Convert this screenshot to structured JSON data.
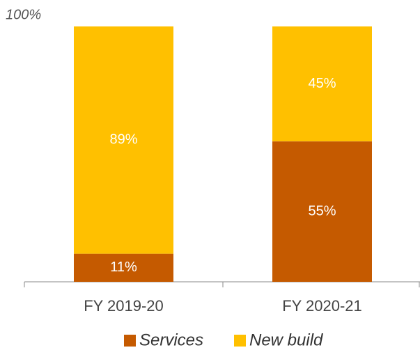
{
  "chart_data": {
    "type": "stacked_bar",
    "categories": [
      "FY 2019-20",
      "FY 2020-21"
    ],
    "series": [
      {
        "name": "Services",
        "color": "#c55a00",
        "values": [
          11,
          55
        ],
        "value_labels": [
          "11%",
          "55%"
        ]
      },
      {
        "name": "New build",
        "color": "#ffc000",
        "values": [
          89,
          45
        ],
        "value_labels": [
          "89%",
          "45%"
        ]
      }
    ],
    "ylim": [
      0,
      100
    ],
    "yticks": [
      {
        "value": 100,
        "label": "100%"
      }
    ],
    "grid": false,
    "legend": "bottom"
  }
}
